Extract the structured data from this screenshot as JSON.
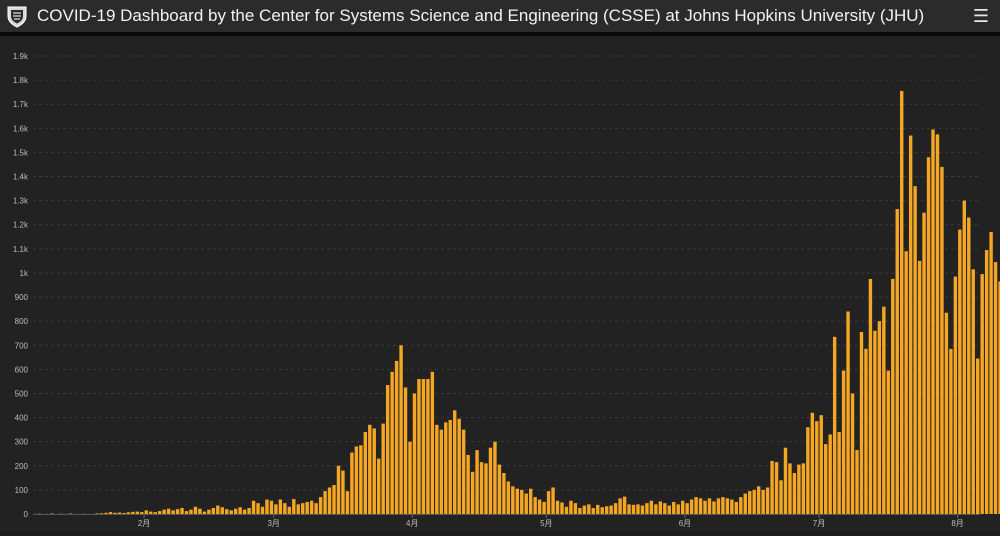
{
  "header": {
    "title": "COVID-19 Dashboard by the Center for Systems Science and Engineering (CSSE) at Johns Hopkins University (JHU)",
    "logo_icon": "jhu-shield-icon",
    "menu_icon": "hamburger-menu-icon"
  },
  "colors": {
    "bar": "#f5a623",
    "background": "#222222",
    "header": "#2b2b2b",
    "grid": "#3a3a3a",
    "axis_text": "#bdbdbd"
  },
  "chart_data": {
    "type": "bar",
    "title": "",
    "xlabel": "",
    "ylabel": "",
    "ylim": [
      0,
      1900
    ],
    "yticks": [
      {
        "value": 0,
        "label": "0"
      },
      {
        "value": 100,
        "label": "100"
      },
      {
        "value": 200,
        "label": "200"
      },
      {
        "value": 300,
        "label": "300"
      },
      {
        "value": 400,
        "label": "400"
      },
      {
        "value": 500,
        "label": "500"
      },
      {
        "value": 600,
        "label": "600"
      },
      {
        "value": 700,
        "label": "700"
      },
      {
        "value": 800,
        "label": "800"
      },
      {
        "value": 900,
        "label": "900"
      },
      {
        "value": 1000,
        "label": "1k"
      },
      {
        "value": 1100,
        "label": "1.1k"
      },
      {
        "value": 1200,
        "label": "1.2k"
      },
      {
        "value": 1300,
        "label": "1.3k"
      },
      {
        "value": 1400,
        "label": "1.4k"
      },
      {
        "value": 1500,
        "label": "1.5k"
      },
      {
        "value": 1600,
        "label": "1.6k"
      },
      {
        "value": 1700,
        "label": "1.7k"
      },
      {
        "value": 1800,
        "label": "1.8k"
      },
      {
        "value": 1900,
        "label": "1.9k"
      }
    ],
    "xticks": [
      {
        "index": 0,
        "label": "2月"
      },
      {
        "index": 29,
        "label": "3月"
      },
      {
        "index": 60,
        "label": "4月"
      },
      {
        "index": 90,
        "label": "5月"
      },
      {
        "index": 121,
        "label": "6月"
      },
      {
        "index": 151,
        "label": "7月"
      },
      {
        "index": 182,
        "label": "8月"
      }
    ],
    "grid": true,
    "first_index": -24,
    "values": [
      1,
      0,
      0,
      2,
      0,
      1,
      0,
      2,
      0,
      0,
      1,
      0,
      0,
      2,
      3,
      5,
      8,
      5,
      6,
      4,
      7,
      9,
      10,
      8,
      15,
      10,
      8,
      12,
      18,
      22,
      15,
      20,
      25,
      12,
      18,
      30,
      22,
      10,
      18,
      25,
      35,
      28,
      20,
      15,
      22,
      28,
      18,
      25,
      55,
      45,
      30,
      60,
      55,
      40,
      60,
      45,
      30,
      62,
      40,
      45,
      50,
      55,
      45,
      70,
      95,
      110,
      120,
      200,
      180,
      95,
      255,
      280,
      285,
      340,
      370,
      355,
      230,
      375,
      535,
      590,
      635,
      700,
      525,
      300,
      500,
      560,
      560,
      560,
      590,
      370,
      350,
      380,
      390,
      430,
      395,
      350,
      245,
      175,
      265,
      215,
      210,
      275,
      300,
      205,
      170,
      135,
      115,
      105,
      100,
      85,
      105,
      70,
      60,
      50,
      95,
      110,
      55,
      48,
      30,
      55,
      45,
      25,
      35,
      40,
      25,
      38,
      28,
      32,
      35,
      45,
      65,
      72,
      40,
      38,
      40,
      35,
      45,
      55,
      40,
      52,
      45,
      35,
      50,
      40,
      55,
      45,
      60,
      70,
      65,
      55,
      65,
      52,
      65,
      70,
      65,
      60,
      50,
      70,
      85,
      95,
      100,
      115,
      100,
      110,
      220,
      215,
      140,
      275,
      210,
      170,
      205,
      210,
      360,
      420,
      385,
      410,
      290,
      330,
      735,
      340,
      595,
      840,
      500,
      265,
      755,
      685,
      975,
      760,
      800,
      860,
      595,
      975,
      1265,
      1755,
      1090,
      1570,
      1360,
      1050,
      1250,
      1480,
      1595,
      1575,
      1440,
      835,
      685,
      985,
      1180,
      1300,
      1230,
      1015,
      645,
      995,
      1095,
      1170,
      1045,
      965
    ]
  }
}
